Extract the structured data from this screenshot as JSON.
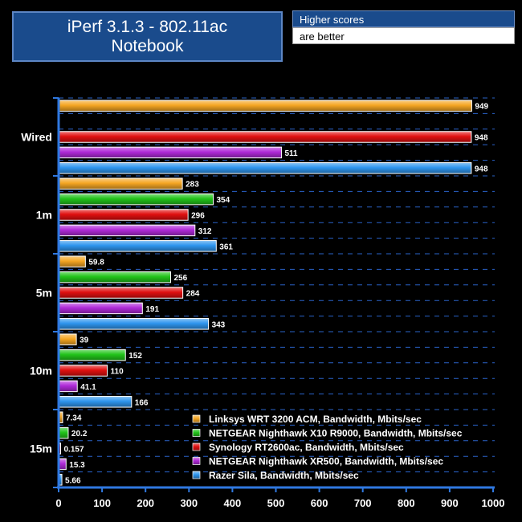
{
  "title_line1": "iPerf 3.1.3 - 802.11ac",
  "title_line2": "Notebook",
  "note_line1": "Higher scores",
  "note_line2": "are better",
  "chart_data": {
    "type": "bar",
    "orientation": "horizontal",
    "categories": [
      "Wired",
      "1m",
      "5m",
      "10m",
      "15m"
    ],
    "series": [
      {
        "name": "Linksys WRT 3200 ACM, Bandwidth, Mbits/sec",
        "values": [
          949,
          283,
          59.8,
          39,
          7.34
        ],
        "color": "#f5a623"
      },
      {
        "name": "NETGEAR Nighthawk X10 R9000, Bandwidth, Mbits/sec",
        "values": [
          null,
          354,
          256,
          152,
          20.2
        ],
        "color": "#22c41a"
      },
      {
        "name": "Synology RT2600ac, Bandwidth, Mbits/sec",
        "values": [
          948,
          296,
          284,
          110,
          0.157
        ],
        "color": "#e01010"
      },
      {
        "name": "NETGEAR Nighthawk XR500, Bandwidth, Mbits/sec",
        "values": [
          511,
          312,
          191,
          41.1,
          15.3
        ],
        "color": "#b02ad8"
      },
      {
        "name": "Razer Sila, Bandwidth, Mbits/sec",
        "values": [
          948,
          361,
          343,
          166,
          5.66
        ],
        "color": "#2e95ee"
      }
    ],
    "value_labels": [
      [
        "949",
        "283",
        "59.8",
        "39",
        "7.34"
      ],
      [
        "",
        "354",
        "256",
        "152",
        "20.2"
      ],
      [
        "948",
        "296",
        "284",
        "110",
        "0.157"
      ],
      [
        "511",
        "312",
        "191",
        "41.1",
        "15.3"
      ],
      [
        "948",
        "361",
        "343",
        "166",
        "5.66"
      ]
    ],
    "xlim": [
      0,
      1000
    ],
    "xticks": [
      "0",
      "100",
      "200",
      "300",
      "400",
      "500",
      "600",
      "700",
      "800",
      "900",
      "1000"
    ],
    "grid": "dashed horizontal lines between bars",
    "legend_position": "bottom-right inside plot"
  }
}
